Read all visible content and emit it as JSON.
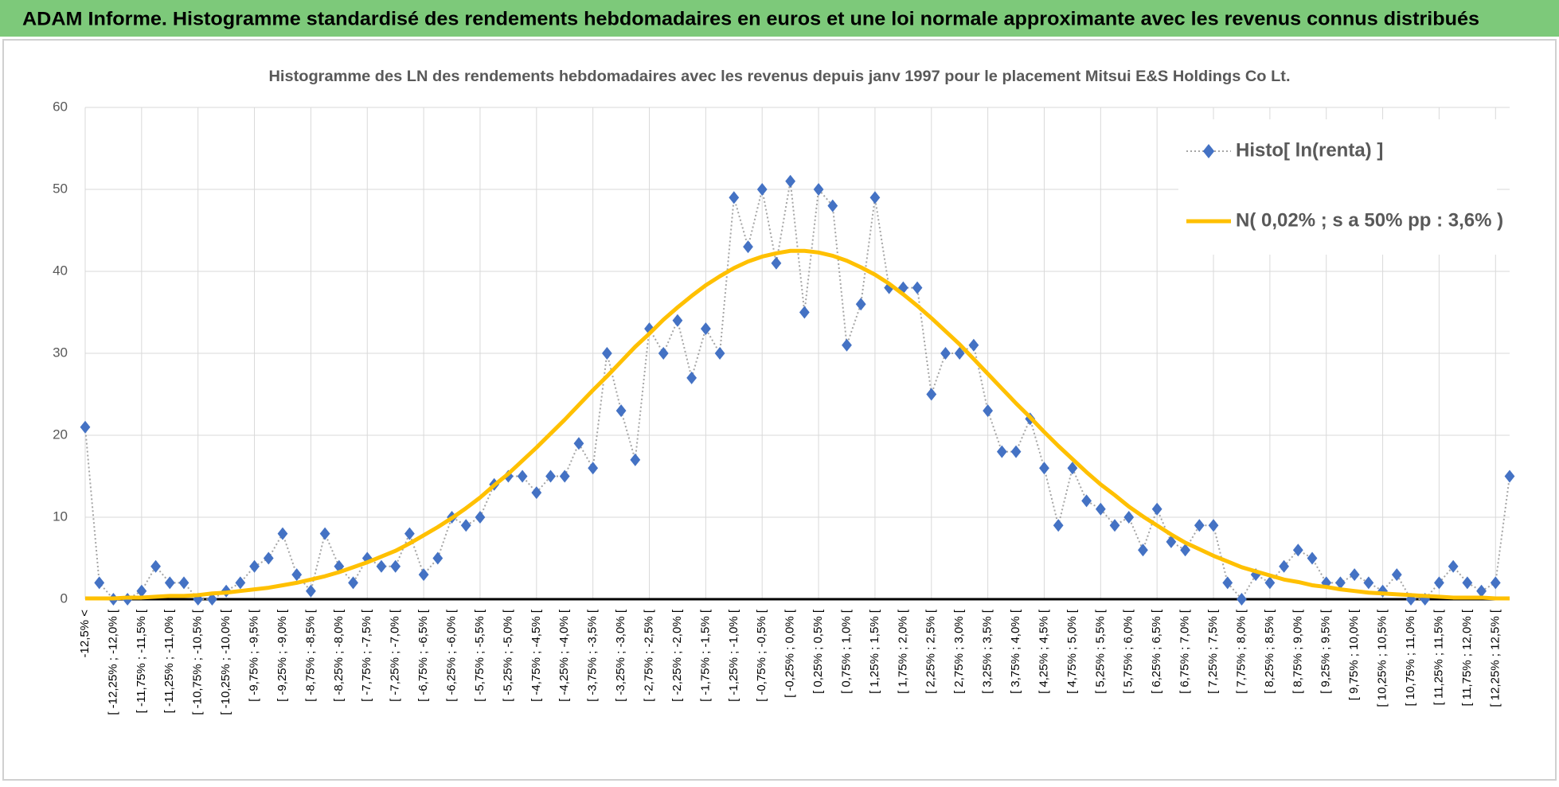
{
  "header": {
    "title": "ADAM Informe. Histogramme standardisé des rendements hebdomadaires en euros et une loi normale approximante avec les revenus connus distribués"
  },
  "chart_data": {
    "type": "line",
    "title": "Histogramme  des LN des rendements hebdomadaires avec les revenus depuis janv 1997 pour le placement Mitsui E&S Holdings Co Lt.",
    "categories": [
      "-12,5% <",
      null,
      "[ -12,25% ; -12,0% [",
      null,
      "[ -11,75% ; -11,5% [",
      null,
      "[ -11,25% ; -11,0% [",
      null,
      "[ -10,75% ; -10,5% [",
      null,
      "[ -10,25% ; -10,0% [",
      null,
      "[ -9,75% ; -9,5% [",
      null,
      "[ -9,25% ; -9,0% [",
      null,
      "[ -8,75% ; -8,5% [",
      null,
      "[ -8,25% ; -8,0% [",
      null,
      "[ -7,75% ; -7,5% [",
      null,
      "[ -7,25% ; -7,0% [",
      null,
      "[ -6,75% ; -6,5% [",
      null,
      "[ -6,25% ; -6,0% [",
      null,
      "[ -5,75% ; -5,5% [",
      null,
      "[ -5,25% ; -5,0% [",
      null,
      "[ -4,75% ; -4,5% [",
      null,
      "[ -4,25% ; -4,0% [",
      null,
      "[ -3,75% ; -3,5% [",
      null,
      "[ -3,25% ; -3,0% [",
      null,
      "[ -2,75% ; -2,5% [",
      null,
      "[ -2,25% ; -2,0% [",
      null,
      "[ -1,75% ; -1,5% [",
      null,
      "[ -1,25% ; -1,0% [",
      null,
      "[ -0,75% ; -0,5% [",
      null,
      "[ -0,25% ; 0,0% [",
      null,
      "[ 0,25% ; 0,5% [",
      null,
      "[ 0,75% ; 1,0% [",
      null,
      "[ 1,25% ; 1,5% [",
      null,
      "[ 1,75% ; 2,0% [",
      null,
      "[ 2,25% ; 2,5% [",
      null,
      "[ 2,75% ; 3,0% [",
      null,
      "[ 3,25% ; 3,5% [",
      null,
      "[ 3,75% ; 4,0% [",
      null,
      "[ 4,25% ; 4,5% [",
      null,
      "[ 4,75% ; 5,0% [",
      null,
      "[ 5,25% ; 5,5% [",
      null,
      "[ 5,75% ; 6,0% [",
      null,
      "[ 6,25% ; 6,5% [",
      null,
      "[ 6,75% ; 7,0% [",
      null,
      "[ 7,25% ; 7,5% [",
      null,
      "[ 7,75% ; 8,0% [",
      null,
      "[ 8,25% ; 8,5% [",
      null,
      "[ 8,75% ; 9,0% [",
      null,
      "[ 9,25% ; 9,5% [",
      null,
      "[ 9,75% ; 10,0% [",
      null,
      "[ 10,25% ; 10,5% [",
      null,
      "[ 10,75% ; 11,0% [",
      null,
      "[ 11,25% ; 11,5% [",
      null,
      "[ 11,75% ; 12,0% [",
      null,
      "[ 12,25% ; 12,5% [",
      null
    ],
    "series": [
      {
        "name": "Histo[ ln(renta) ]",
        "color": "#4472c4",
        "line_color": "#a5a5a5",
        "marker": "diamond",
        "values": [
          21,
          2,
          0,
          0,
          1,
          4,
          2,
          2,
          0,
          0,
          1,
          2,
          4,
          5,
          8,
          3,
          1,
          8,
          4,
          2,
          5,
          4,
          4,
          8,
          3,
          5,
          10,
          9,
          10,
          14,
          15,
          15,
          13,
          15,
          15,
          19,
          16,
          30,
          23,
          17,
          33,
          30,
          34,
          27,
          33,
          30,
          49,
          43,
          50,
          41,
          51,
          35,
          50,
          48,
          31,
          36,
          49,
          38,
          38,
          38,
          25,
          30,
          30,
          31,
          23,
          18,
          18,
          22,
          16,
          9,
          16,
          12,
          11,
          9,
          10,
          6,
          11,
          7,
          6,
          9,
          9,
          2,
          0,
          3,
          2,
          4,
          6,
          5,
          2,
          2,
          3,
          2,
          1,
          3,
          0,
          0,
          2,
          4,
          2,
          1,
          2,
          15
        ]
      },
      {
        "name": "N( 0,02% ; s a 50% pp : 3,6% )",
        "color": "#ffc000",
        "marker": "none",
        "values": [
          0.1,
          0.1,
          0.1,
          0.2,
          0.2,
          0.3,
          0.4,
          0.4,
          0.5,
          0.7,
          0.8,
          1.0,
          1.2,
          1.4,
          1.7,
          2.0,
          2.4,
          2.8,
          3.3,
          3.9,
          4.5,
          5.2,
          5.9,
          6.8,
          7.8,
          8.8,
          9.9,
          11.1,
          12.4,
          13.9,
          15.3,
          16.9,
          18.5,
          20.2,
          21.9,
          23.7,
          25.5,
          27.2,
          29.0,
          30.8,
          32.4,
          34.1,
          35.6,
          37.0,
          38.3,
          39.4,
          40.4,
          41.2,
          41.8,
          42.2,
          42.5,
          42.5,
          42.3,
          41.9,
          41.3,
          40.5,
          39.6,
          38.5,
          37.2,
          35.8,
          34.3,
          32.7,
          31.1,
          29.3,
          27.5,
          25.7,
          23.9,
          22.2,
          20.4,
          18.7,
          17.1,
          15.5,
          14.0,
          12.7,
          11.3,
          10.1,
          9.0,
          7.9,
          6.9,
          6.1,
          5.3,
          4.6,
          3.9,
          3.4,
          2.9,
          2.4,
          2.1,
          1.7,
          1.5,
          1.2,
          1.0,
          0.8,
          0.7,
          0.6,
          0.5,
          0.4,
          0.3,
          0.2,
          0.2,
          0.2,
          0.1,
          0.1
        ]
      }
    ],
    "ylim": [
      0,
      60
    ],
    "yticks": [
      0,
      10,
      20,
      30,
      40,
      50,
      60
    ],
    "grid": true,
    "legend": "top-right"
  }
}
